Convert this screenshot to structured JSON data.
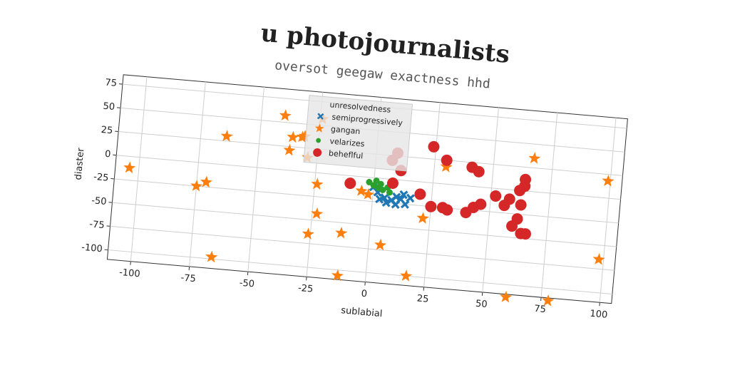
{
  "chart_data": {
    "type": "scatter",
    "title": "u photojournalists",
    "subtitle": "oversot geegaw exactness hhd",
    "x_label": "sublabial",
    "y_label": "diaster",
    "xlim": [
      -110,
      105
    ],
    "ylim": [
      -110,
      85
    ],
    "xticks": [
      -100,
      -75,
      -50,
      -25,
      0,
      25,
      50,
      75,
      100
    ],
    "yticks": [
      -100,
      -75,
      -50,
      -25,
      0,
      25,
      50,
      75
    ],
    "grid": true,
    "legend_title": "unresolvedness",
    "legend_position": "upper center",
    "series": [
      {
        "name": "semiprogressively",
        "color": "#1f77b4",
        "marker": "x",
        "x": [
          0,
          2,
          5,
          8,
          10,
          12,
          14,
          6,
          10,
          13,
          3,
          16
        ],
        "y": [
          -10,
          -15,
          -20,
          -22,
          -18,
          -20,
          -25,
          -25,
          -26,
          -15,
          -22,
          -18
        ]
      },
      {
        "name": "gangan",
        "color": "#ff7f0e",
        "marker": "star",
        "x": [
          -104,
          -75,
          -71,
          -64,
          -66,
          -40,
          -36,
          -32,
          -31,
          -37,
          -29,
          -24,
          -24,
          -23,
          -26,
          -12,
          -12,
          -5,
          -2,
          5,
          17,
          22,
          30,
          60,
          78,
          67,
          64,
          99,
          98
        ],
        "y": [
          -12,
          -25,
          -20,
          30,
          -98,
          57,
          35,
          36,
          37,
          21,
          15,
          57,
          -12,
          -43,
          -65,
          -61,
          -106,
          -15,
          -18,
          -70,
          -100,
          -38,
          18,
          -113,
          -113,
          35,
          5,
          18,
          -65
        ]
      },
      {
        "name": "velarizes",
        "color": "#2ca02c",
        "marker": "dot",
        "x": [
          -2,
          0,
          2,
          4,
          6,
          3,
          7,
          1
        ],
        "y": [
          -5,
          -8,
          -10,
          -12,
          -9,
          -6,
          -14,
          -3
        ]
      },
      {
        "name": "beheflful",
        "color": "#d62728",
        "marker": "circle",
        "x": [
          -10,
          8,
          20,
          24,
          30,
          25,
          30,
          32,
          40,
          41,
          44,
          43,
          46,
          52,
          56,
          58,
          60,
          62,
          63,
          62,
          64,
          64,
          64,
          66,
          9,
          11,
          7
        ],
        "y": [
          -8,
          -4,
          -13,
          38,
          25,
          -25,
          -25,
          -27,
          -28,
          20,
          16,
          -22,
          -18,
          -8,
          -17,
          -10,
          -38,
          0,
          -15,
          -30,
          5,
          12,
          -45,
          -45,
          28,
          10,
          20
        ]
      }
    ]
  }
}
